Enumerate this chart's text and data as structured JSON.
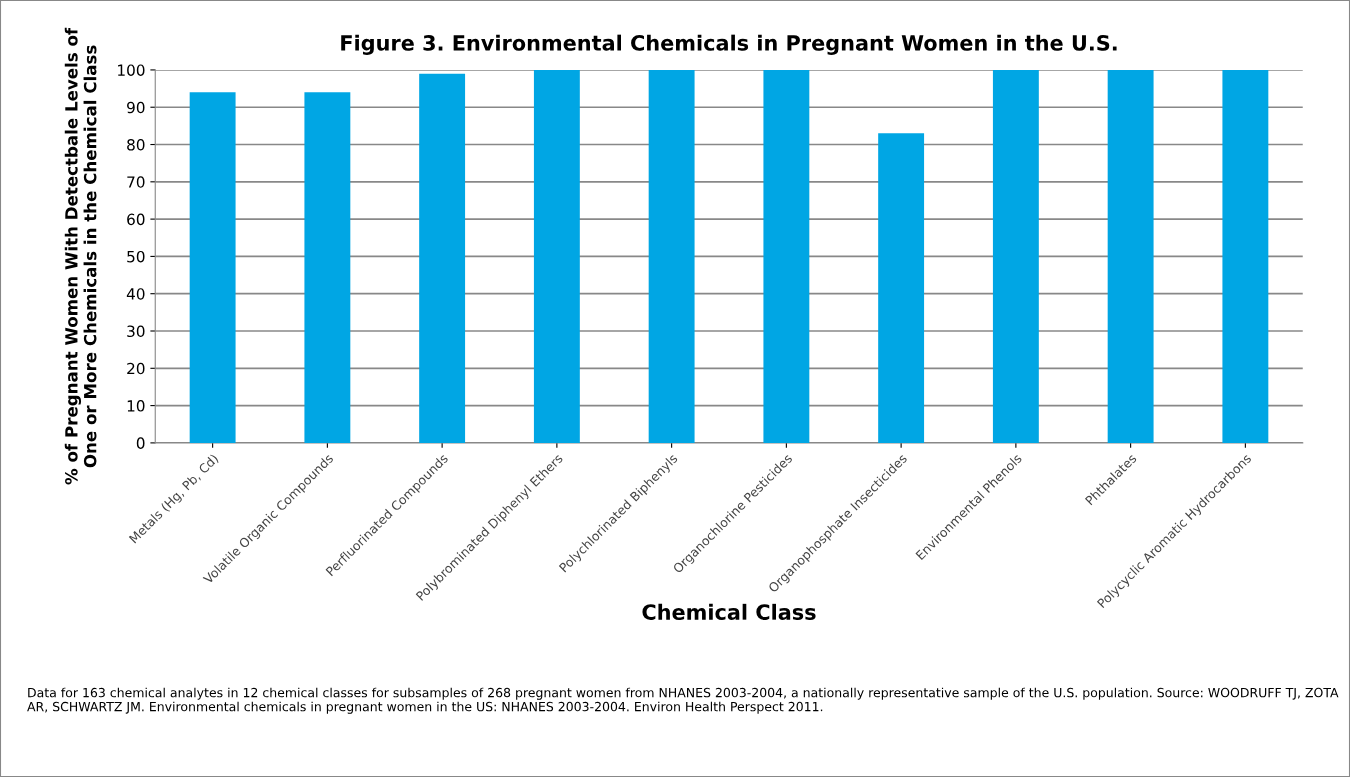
{
  "chart_data": {
    "type": "bar",
    "title": "Figure 3. Environmental Chemicals in Pregnant Women in the U.S.",
    "xlabel": "Chemical Class",
    "ylabel": "% of Pregnant Women With Detectbale Levels of\nOne or More Chemicals in the Chemical Class",
    "categories": [
      "Metals (Hg, Pb, Cd)",
      "Volatile Organic Compounds",
      "Perfluorinated Compounds",
      "Polybrominated Diphenyl Ethers",
      "Polychlorinated Biphenyls",
      "Organochlorine Pesticides",
      "Organophosphate Insecticides",
      "Environmental Phenols",
      "Phthalates",
      "Polycyclic Aromatic Hydrocarbons"
    ],
    "values": [
      94,
      94,
      99,
      100,
      100,
      100,
      83,
      100,
      100,
      100
    ],
    "color": "#00a6e4",
    "ylim": [
      0,
      100
    ],
    "yticks": [
      0,
      10,
      20,
      30,
      40,
      50,
      60,
      70,
      80,
      90,
      100
    ],
    "grid": "y",
    "annotations": [
      "Data for 163 chemical analytes in 12 chemical classes for subsamples of 268 pregnant women from NHANES 2003-2004, a nationally representative sample of the U.S. population. Source: WOODRUFF TJ, ZOTA AR, SCHWARTZ JM. Environmental chemicals in pregnant women in the US: NHANES 2003-2004. Environ Health Perspect 2011."
    ]
  }
}
